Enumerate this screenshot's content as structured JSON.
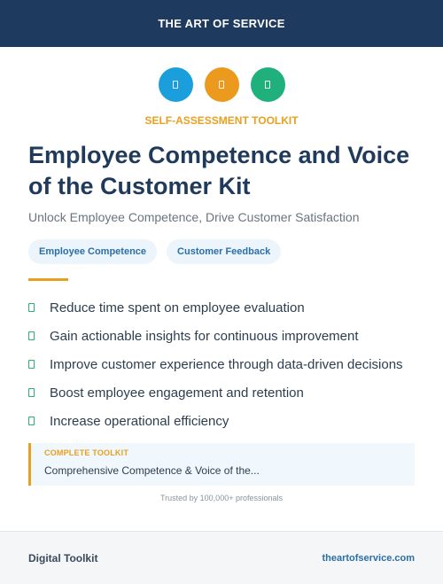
{
  "header": {
    "brand": "THE ART OF SERVICE"
  },
  "icons": [
    {
      "name": "document-icon",
      "color": "#1a9fdc"
    },
    {
      "name": "document-icon",
      "color": "#eb9a1e"
    },
    {
      "name": "document-icon",
      "color": "#1fb07b"
    }
  ],
  "kicker": "SELF-ASSESSMENT TOOLKIT",
  "title": "Employee Competence and Voice of the Customer Kit",
  "subtitle": "Unlock Employee Competence, Drive Customer Satisfaction",
  "tags": [
    "Employee Competence",
    "Customer Feedback"
  ],
  "benefits": [
    "Reduce time spent on employee evaluation",
    "Gain actionable insights for continuous improvement",
    "Improve customer experience through data-driven decisions",
    "Boost employee engagement and retention",
    "Increase operational efficiency"
  ],
  "callout": {
    "kicker": "COMPLETE TOOLKIT",
    "text": "Comprehensive Competence & Voice of the..."
  },
  "trusted": "Trusted by 100,000+ professionals",
  "footer": {
    "left": "Digital Toolkit",
    "right": "theartofservice.com"
  },
  "colors": {
    "navy": "#1f3a5f",
    "accent": "#e8a020",
    "check": "#2fae7a"
  }
}
